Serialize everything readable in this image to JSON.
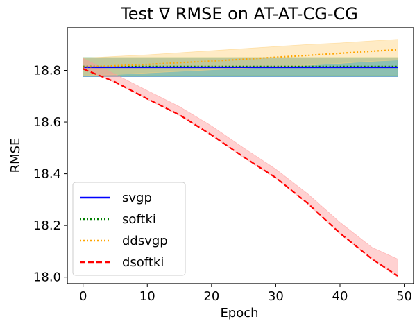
{
  "chart_data": {
    "type": "line",
    "title": "Test ∇ RMSE on AT-AT-CG-CG",
    "xlabel": "Epoch",
    "ylabel": "RMSE",
    "xlim": [
      -2.45,
      51.45
    ],
    "ylim": [
      17.975,
      18.965
    ],
    "xticks": [
      0,
      10,
      20,
      30,
      40,
      50
    ],
    "yticks": [
      18.0,
      18.2,
      18.4,
      18.6,
      18.8
    ],
    "ytick_labels": [
      "18.0",
      "18.2",
      "18.4",
      "18.6",
      "18.8"
    ],
    "grid": false,
    "legend_position": "lower-left",
    "x": [
      0,
      5,
      10,
      15,
      20,
      25,
      30,
      35,
      40,
      45,
      49
    ],
    "series": [
      {
        "name": "svgp",
        "color": "#0000ff",
        "style": "solid",
        "values": [
          18.812,
          18.812,
          18.812,
          18.812,
          18.812,
          18.812,
          18.812,
          18.812,
          18.812,
          18.812,
          18.812
        ],
        "band_lower": [
          18.776,
          18.776,
          18.776,
          18.776,
          18.776,
          18.776,
          18.776,
          18.776,
          18.776,
          18.776,
          18.776
        ],
        "band_upper": [
          18.848,
          18.848,
          18.848,
          18.848,
          18.848,
          18.848,
          18.848,
          18.848,
          18.848,
          18.848,
          18.848
        ],
        "band_color": "#1f77b4"
      },
      {
        "name": "softki",
        "color": "#008000",
        "style": "dotted",
        "values": [
          18.815,
          18.815,
          18.815,
          18.815,
          18.815,
          18.815,
          18.815,
          18.815,
          18.815,
          18.815,
          18.815
        ],
        "band_lower": [
          18.78,
          18.78,
          18.78,
          18.78,
          18.78,
          18.78,
          18.78,
          18.78,
          18.78,
          18.78,
          18.78
        ],
        "band_upper": [
          18.85,
          18.85,
          18.85,
          18.85,
          18.85,
          18.85,
          18.85,
          18.85,
          18.85,
          18.85,
          18.85
        ],
        "band_color": "#7fbf7f"
      },
      {
        "name": "ddsvgp",
        "color": "#ffa500",
        "style": "dotted",
        "values": [
          18.813,
          18.818,
          18.823,
          18.83,
          18.836,
          18.843,
          18.851,
          18.858,
          18.866,
          18.874,
          18.88
        ],
        "band_lower": [
          18.779,
          18.784,
          18.79,
          18.796,
          18.802,
          18.808,
          18.814,
          18.82,
          18.827,
          18.835,
          18.84
        ],
        "band_upper": [
          18.847,
          18.854,
          18.86,
          18.868,
          18.876,
          18.884,
          18.892,
          18.9,
          18.906,
          18.914,
          18.92
        ],
        "band_color": "#ffd27f"
      },
      {
        "name": "dsoftki",
        "color": "#ff0000",
        "style": "dashed",
        "values": [
          18.806,
          18.755,
          18.69,
          18.628,
          18.55,
          18.465,
          18.385,
          18.285,
          18.17,
          18.07,
          18.005
        ],
        "band_lower": [
          18.806,
          18.753,
          18.688,
          18.626,
          18.548,
          18.463,
          18.383,
          18.283,
          18.168,
          18.068,
          18.0
        ],
        "band_upper": [
          18.846,
          18.785,
          18.722,
          18.66,
          18.585,
          18.5,
          18.418,
          18.322,
          18.212,
          18.115,
          18.07
        ],
        "band_color": "#ff9999"
      }
    ]
  }
}
